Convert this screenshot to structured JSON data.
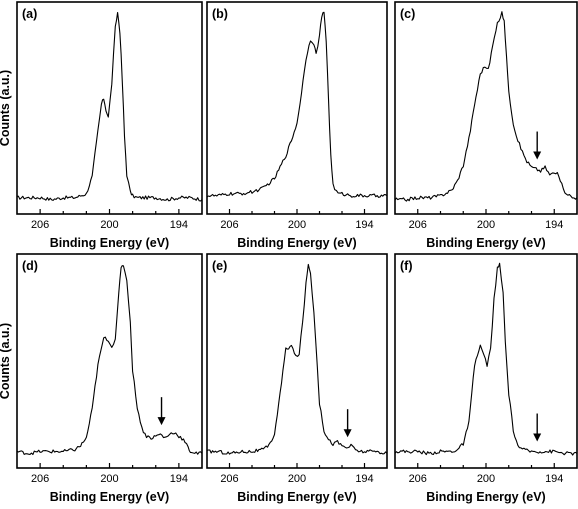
{
  "chart_data": [
    {
      "type": "line",
      "panel_label": "(a)",
      "xlabel": "Binding Energy (eV)",
      "ylabel": "Counts (a.u.)",
      "xlim": [
        208,
        192
      ],
      "x_reversed": true,
      "xticks": [
        206,
        200,
        194
      ],
      "y_ticks_shown": false,
      "arrow_at": null,
      "x": [
        208,
        207,
        206,
        205,
        204,
        203,
        202.5,
        202,
        201.5,
        201.0,
        200.7,
        200.5,
        200.3,
        200.1,
        199.8,
        199.5,
        199.3,
        199.1,
        198.9,
        198.7,
        198.5,
        198.2,
        198.0,
        197.6,
        197.0,
        196,
        195,
        194,
        193,
        192
      ],
      "y": [
        0.03,
        0.03,
        0.03,
        0.02,
        0.03,
        0.03,
        0.04,
        0.05,
        0.14,
        0.38,
        0.52,
        0.55,
        0.49,
        0.45,
        0.63,
        0.92,
        1.0,
        0.9,
        0.65,
        0.35,
        0.15,
        0.06,
        0.04,
        0.03,
        0.03,
        0.03,
        0.02,
        0.03,
        0.03,
        0.02
      ]
    },
    {
      "type": "line",
      "panel_label": "(b)",
      "xlabel": "Binding Energy (eV)",
      "xlim": [
        208,
        192
      ],
      "x_reversed": true,
      "xticks": [
        206,
        200,
        194
      ],
      "y_ticks_shown": false,
      "arrow_at": null,
      "x": [
        208,
        207,
        206,
        205,
        204,
        203,
        202,
        201.5,
        201,
        200.5,
        200.0,
        199.6,
        199.2,
        198.8,
        198.5,
        198.3,
        198.0,
        197.8,
        197.6,
        197.4,
        197.2,
        197.0,
        196.8,
        196.5,
        196.2,
        196,
        195,
        194,
        193,
        192
      ],
      "y": [
        0.04,
        0.04,
        0.05,
        0.05,
        0.06,
        0.08,
        0.13,
        0.19,
        0.25,
        0.33,
        0.42,
        0.58,
        0.76,
        0.86,
        0.84,
        0.78,
        0.88,
        0.98,
        1.0,
        0.85,
        0.55,
        0.25,
        0.1,
        0.06,
        0.05,
        0.05,
        0.04,
        0.04,
        0.04,
        0.04
      ]
    },
    {
      "type": "line",
      "panel_label": "(c)",
      "xlabel": "Binding Energy (eV)",
      "xlim": [
        208,
        192
      ],
      "x_reversed": true,
      "xticks": [
        206,
        200,
        194
      ],
      "y_ticks_shown": false,
      "arrow_at": 195.5,
      "x": [
        208,
        207,
        206,
        205,
        204,
        203,
        202.5,
        202,
        201.5,
        201,
        200.5,
        200.1,
        199.8,
        199.4,
        199.0,
        198.6,
        198.4,
        198.2,
        198.0,
        197.6,
        197.2,
        196.8,
        196.4,
        196.0,
        195.6,
        195.2,
        194.8,
        194.4,
        194.0,
        193.6,
        193.2,
        192.8,
        192.4,
        192
      ],
      "y": [
        0.02,
        0.02,
        0.03,
        0.03,
        0.04,
        0.07,
        0.12,
        0.2,
        0.34,
        0.52,
        0.68,
        0.72,
        0.7,
        0.83,
        0.94,
        1.0,
        0.95,
        0.78,
        0.58,
        0.42,
        0.33,
        0.27,
        0.22,
        0.19,
        0.18,
        0.17,
        0.19,
        0.15,
        0.16,
        0.15,
        0.07,
        0.05,
        0.03,
        0.03
      ]
    },
    {
      "type": "line",
      "panel_label": "(d)",
      "xlabel": "Binding Energy (eV)",
      "ylabel": "Counts (a.u.)",
      "xlim": [
        208,
        192
      ],
      "x_reversed": true,
      "xticks": [
        206,
        200,
        194
      ],
      "y_ticks_shown": false,
      "arrow_at": 195.5,
      "x": [
        208,
        207,
        206,
        205,
        204,
        203,
        202.5,
        202,
        201.5,
        201.0,
        200.5,
        200.1,
        199.8,
        199.5,
        199.2,
        199.0,
        198.8,
        198.5,
        198.2,
        198.0,
        197.6,
        197.2,
        196.8,
        196.4,
        196.0,
        195.6,
        195.2,
        194.8,
        194.4,
        194.0,
        193.6,
        193.2,
        193.0,
        192.5,
        192
      ],
      "y": [
        0.03,
        0.02,
        0.03,
        0.03,
        0.03,
        0.04,
        0.06,
        0.1,
        0.25,
        0.48,
        0.62,
        0.61,
        0.57,
        0.62,
        0.85,
        0.98,
        1.0,
        0.92,
        0.7,
        0.45,
        0.26,
        0.15,
        0.11,
        0.1,
        0.11,
        0.12,
        0.1,
        0.12,
        0.13,
        0.11,
        0.09,
        0.05,
        0.03,
        0.02,
        0.02
      ]
    },
    {
      "type": "line",
      "panel_label": "(e)",
      "xlabel": "Binding Energy (eV)",
      "xlim": [
        208,
        192
      ],
      "x_reversed": true,
      "xticks": [
        206,
        200,
        194
      ],
      "y_ticks_shown": false,
      "arrow_at": 195.5,
      "x": [
        208,
        207,
        206,
        205,
        204,
        203,
        202.5,
        202,
        201.5,
        201.0,
        200.5,
        200.1,
        199.8,
        199.5,
        199.2,
        199.0,
        198.8,
        198.5,
        198.2,
        198.0,
        197.6,
        197.2,
        196.8,
        196.4,
        196.0,
        195.6,
        195.2,
        194.8,
        194.4,
        194.0,
        193,
        192
      ],
      "y": [
        0.03,
        0.03,
        0.02,
        0.03,
        0.03,
        0.04,
        0.06,
        0.12,
        0.33,
        0.56,
        0.58,
        0.52,
        0.54,
        0.7,
        0.9,
        1.0,
        0.96,
        0.75,
        0.48,
        0.28,
        0.14,
        0.09,
        0.07,
        0.08,
        0.06,
        0.05,
        0.06,
        0.04,
        0.03,
        0.03,
        0.03,
        0.02
      ]
    },
    {
      "type": "line",
      "panel_label": "(f)",
      "xlabel": "Binding Energy (eV)",
      "xlim": [
        208,
        192
      ],
      "x_reversed": true,
      "xticks": [
        206,
        200,
        194
      ],
      "y_ticks_shown": false,
      "arrow_at": 195.5,
      "x": [
        208,
        207,
        206,
        205,
        204,
        203,
        202.5,
        202,
        201.5,
        201.0,
        200.5,
        200.2,
        199.9,
        199.6,
        199.3,
        199.0,
        198.8,
        198.5,
        198.3,
        198.0,
        197.6,
        197.2,
        196.8,
        196.0,
        195,
        194,
        193,
        192
      ],
      "y": [
        0.03,
        0.03,
        0.03,
        0.02,
        0.03,
        0.03,
        0.04,
        0.07,
        0.18,
        0.48,
        0.58,
        0.53,
        0.48,
        0.56,
        0.82,
        0.98,
        1.0,
        0.85,
        0.6,
        0.33,
        0.14,
        0.06,
        0.04,
        0.03,
        0.03,
        0.03,
        0.02,
        0.02
      ]
    }
  ]
}
